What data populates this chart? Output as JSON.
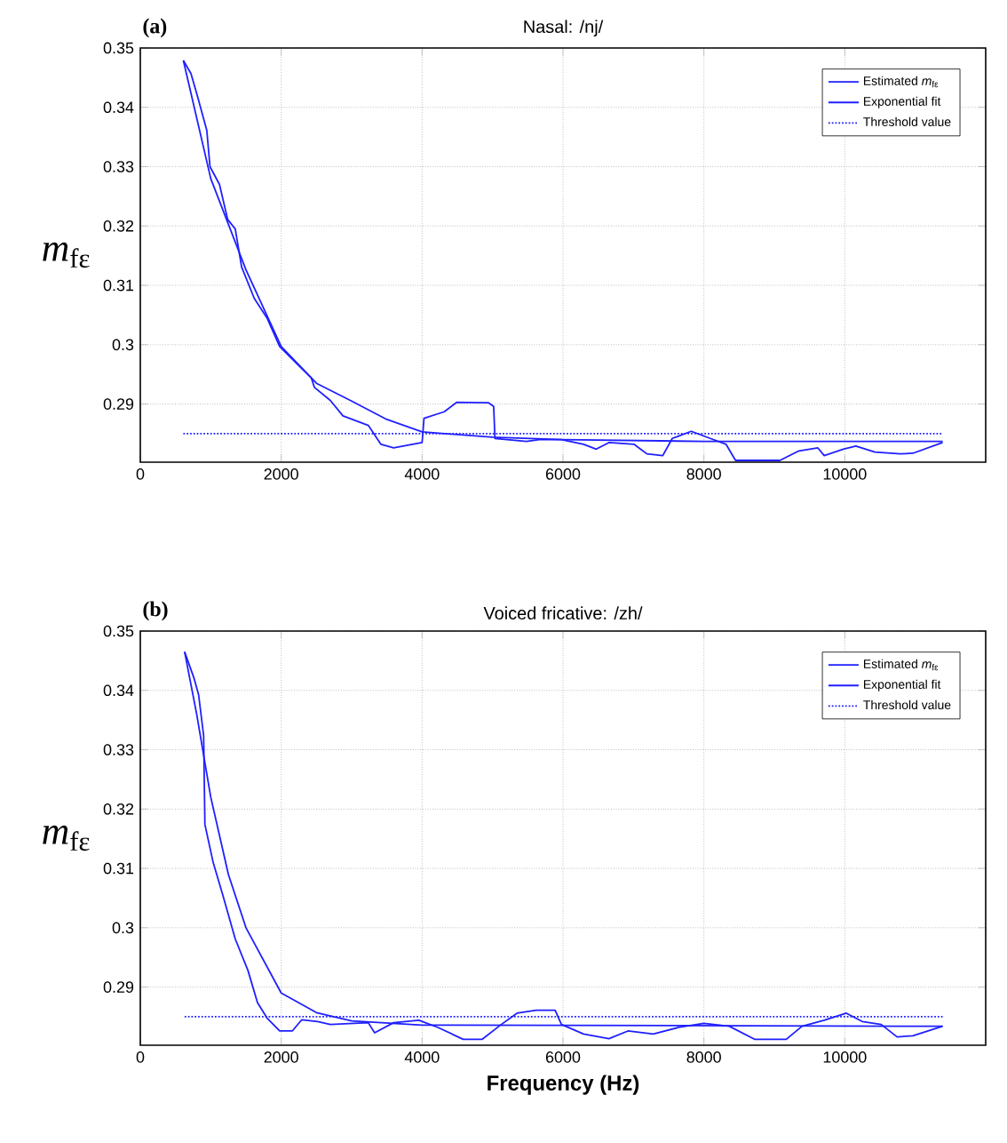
{
  "chart_data": [
    {
      "type": "line",
      "title": "Nasal: /nj/",
      "ylabel": "*m*$_{fε}$",
      "annotations": [
        "(a)"
      ],
      "xlim": [
        0,
        12000
      ],
      "ylim": [
        0.2802,
        0.35
      ],
      "xticks": [
        0,
        2000,
        4000,
        6000,
        8000,
        10000
      ],
      "yticks": [
        0.29,
        0.3,
        0.31,
        0.32,
        0.33,
        0.34,
        0.35
      ],
      "grid": true,
      "legend": "top right",
      "series": [
        {
          "name": "Estimated *m*$_{fε}$",
          "line_style": "solid",
          "color": "#1f1fff",
          "x": [
            611,
            719,
            809,
            944,
            989,
            1124,
            1240,
            1348,
            1438,
            1618,
            1798,
            1978,
            2247,
            2427,
            2472,
            2697,
            2876,
            3236,
            3416,
            3596,
            4000,
            4027,
            4315,
            4494,
            4944,
            5016,
            5034,
            5483,
            5663,
            5978,
            6292,
            6472,
            6652,
            7011,
            7191,
            7416,
            7551,
            7820,
            8090,
            8315,
            8449,
            9079,
            9349,
            9618,
            9708,
            9978,
            10157,
            10427,
            10787,
            10966,
            11389
          ],
          "values": [
            0.3479,
            0.3457,
            0.342,
            0.3361,
            0.33,
            0.327,
            0.3211,
            0.3195,
            0.3131,
            0.3078,
            0.3045,
            0.2997,
            0.2965,
            0.2944,
            0.2928,
            0.2906,
            0.288,
            0.2864,
            0.2832,
            0.2826,
            0.2835,
            0.2876,
            0.2887,
            0.2903,
            0.2902,
            0.2896,
            0.2842,
            0.2837,
            0.284,
            0.284,
            0.2832,
            0.2824,
            0.2835,
            0.2832,
            0.2816,
            0.2813,
            0.2842,
            0.2854,
            0.2842,
            0.2832,
            0.2805,
            0.2805,
            0.2821,
            0.2826,
            0.2813,
            0.2824,
            0.2829,
            0.2819,
            0.2816,
            0.2817,
            0.2835
          ]
        },
        {
          "name": "Exponential fit",
          "line_style": "solid",
          "color": "#1f1fff",
          "x": [
            611,
            1000,
            1500,
            2000,
            2500,
            3000,
            3500,
            4000,
            5000,
            6000,
            8000,
            11389
          ],
          "values": [
            0.3479,
            0.328,
            0.3126,
            0.2997,
            0.2935,
            0.2905,
            0.2874,
            0.2853,
            0.2844,
            0.284,
            0.2837,
            0.2837
          ]
        },
        {
          "name": "Threshold value",
          "line_style": "dotted",
          "color": "#1f1fff",
          "x": [
            611,
            11389
          ],
          "values": [
            0.285,
            0.285
          ]
        }
      ]
    },
    {
      "type": "line",
      "title": "Voiced fricative: /zh/",
      "xlabel": "Frequency (Hz)",
      "ylabel": "*m*$_{fε}$",
      "annotations": [
        "(b)"
      ],
      "xlim": [
        0,
        12000
      ],
      "ylim": [
        0.2802,
        0.35
      ],
      "xticks": [
        0,
        2000,
        4000,
        6000,
        8000,
        10000
      ],
      "yticks": [
        0.29,
        0.3,
        0.31,
        0.32,
        0.33,
        0.34,
        0.35
      ],
      "grid": true,
      "legend": "top right",
      "series": [
        {
          "name": "Estimated *m*$_{fε}$",
          "line_style": "solid",
          "color": "#1f1fff",
          "x": [
            629,
            764,
            827,
            899,
            917,
            1034,
            1169,
            1348,
            1528,
            1663,
            1798,
            1978,
            2157,
            2292,
            2517,
            2697,
            3236,
            3326,
            3596,
            3955,
            4225,
            4584,
            4854,
            5124,
            5348,
            5618,
            5888,
            5978,
            6292,
            6652,
            6921,
            7281,
            7641,
            8000,
            8360,
            8719,
            9169,
            9393,
            9708,
            10022,
            10247,
            10517,
            10742,
            10966,
            11389
          ],
          "values": [
            0.3465,
            0.342,
            0.3393,
            0.3324,
            0.3174,
            0.311,
            0.3056,
            0.2981,
            0.2928,
            0.2874,
            0.2848,
            0.2826,
            0.2826,
            0.2845,
            0.2842,
            0.2837,
            0.284,
            0.2823,
            0.284,
            0.2844,
            0.2832,
            0.2812,
            0.2812,
            0.2837,
            0.2856,
            0.2861,
            0.2861,
            0.2837,
            0.2821,
            0.2813,
            0.2826,
            0.2821,
            0.2832,
            0.2839,
            0.2834,
            0.2812,
            0.2812,
            0.2834,
            0.2844,
            0.2856,
            0.2842,
            0.2837,
            0.2816,
            0.2818,
            0.2834
          ]
        },
        {
          "name": "Exponential fit",
          "line_style": "solid",
          "color": "#1f1fff",
          "x": [
            629,
            800,
            1000,
            1250,
            1500,
            2000,
            2500,
            3000,
            4000,
            11389
          ],
          "values": [
            0.3465,
            0.336,
            0.322,
            0.309,
            0.3,
            0.289,
            0.2857,
            0.2843,
            0.2836,
            0.2834
          ]
        },
        {
          "name": "Threshold value",
          "line_style": "dotted",
          "color": "#1f1fff",
          "x": [
            629,
            11389
          ],
          "values": [
            0.285,
            0.285
          ]
        }
      ]
    }
  ]
}
